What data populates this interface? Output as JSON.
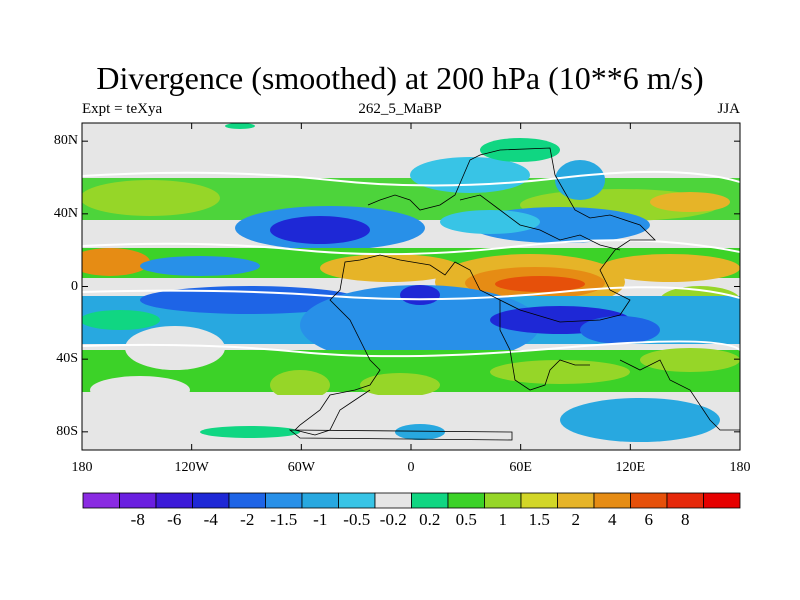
{
  "title": "Divergence (smoothed) at 200 hPa (10**6 m/s)",
  "subtitle_left": "Expt = teXya",
  "subtitle_center": "262_5_MaBP",
  "subtitle_right": "JJA",
  "y_ticks": [
    {
      "label": "80N",
      "lat": 80
    },
    {
      "label": "40N",
      "lat": 40
    },
    {
      "label": "0",
      "lat": 0
    },
    {
      "label": "40S",
      "lat": -40
    },
    {
      "label": "80S",
      "lat": -80
    }
  ],
  "x_ticks": [
    {
      "label": "180",
      "lon": -180
    },
    {
      "label": "120W",
      "lon": -120
    },
    {
      "label": "60W",
      "lon": -60
    },
    {
      "label": "0",
      "lon": 0
    },
    {
      "label": "60E",
      "lon": 60
    },
    {
      "label": "120E",
      "lon": 120
    },
    {
      "label": "180",
      "lon": 180
    }
  ],
  "colorbar": {
    "colors": [
      "#8a2be2",
      "#6a1fe0",
      "#3c1ad8",
      "#1e28d6",
      "#1e64e6",
      "#2890e8",
      "#28a8e0",
      "#38c4e6",
      "#e6e6e6",
      "#10d682",
      "#3cd228",
      "#96d628",
      "#d2d628",
      "#e6b428",
      "#e68c14",
      "#e6500a",
      "#e6280a",
      "#e60000"
    ],
    "labels": [
      "-8",
      "-6",
      "-4",
      "-2",
      "-1.5",
      "-1",
      "-0.5",
      "-0.2",
      "0.2",
      "0.5",
      "1",
      "1.5",
      "2",
      "4",
      "6",
      "8"
    ]
  },
  "map": {
    "lon_range": [
      -180,
      180
    ],
    "lat_range": [
      -90,
      90
    ],
    "background_color": "#e6e6e6",
    "contour_line_color": "#ffffff",
    "coastline_color": "#000000"
  }
}
